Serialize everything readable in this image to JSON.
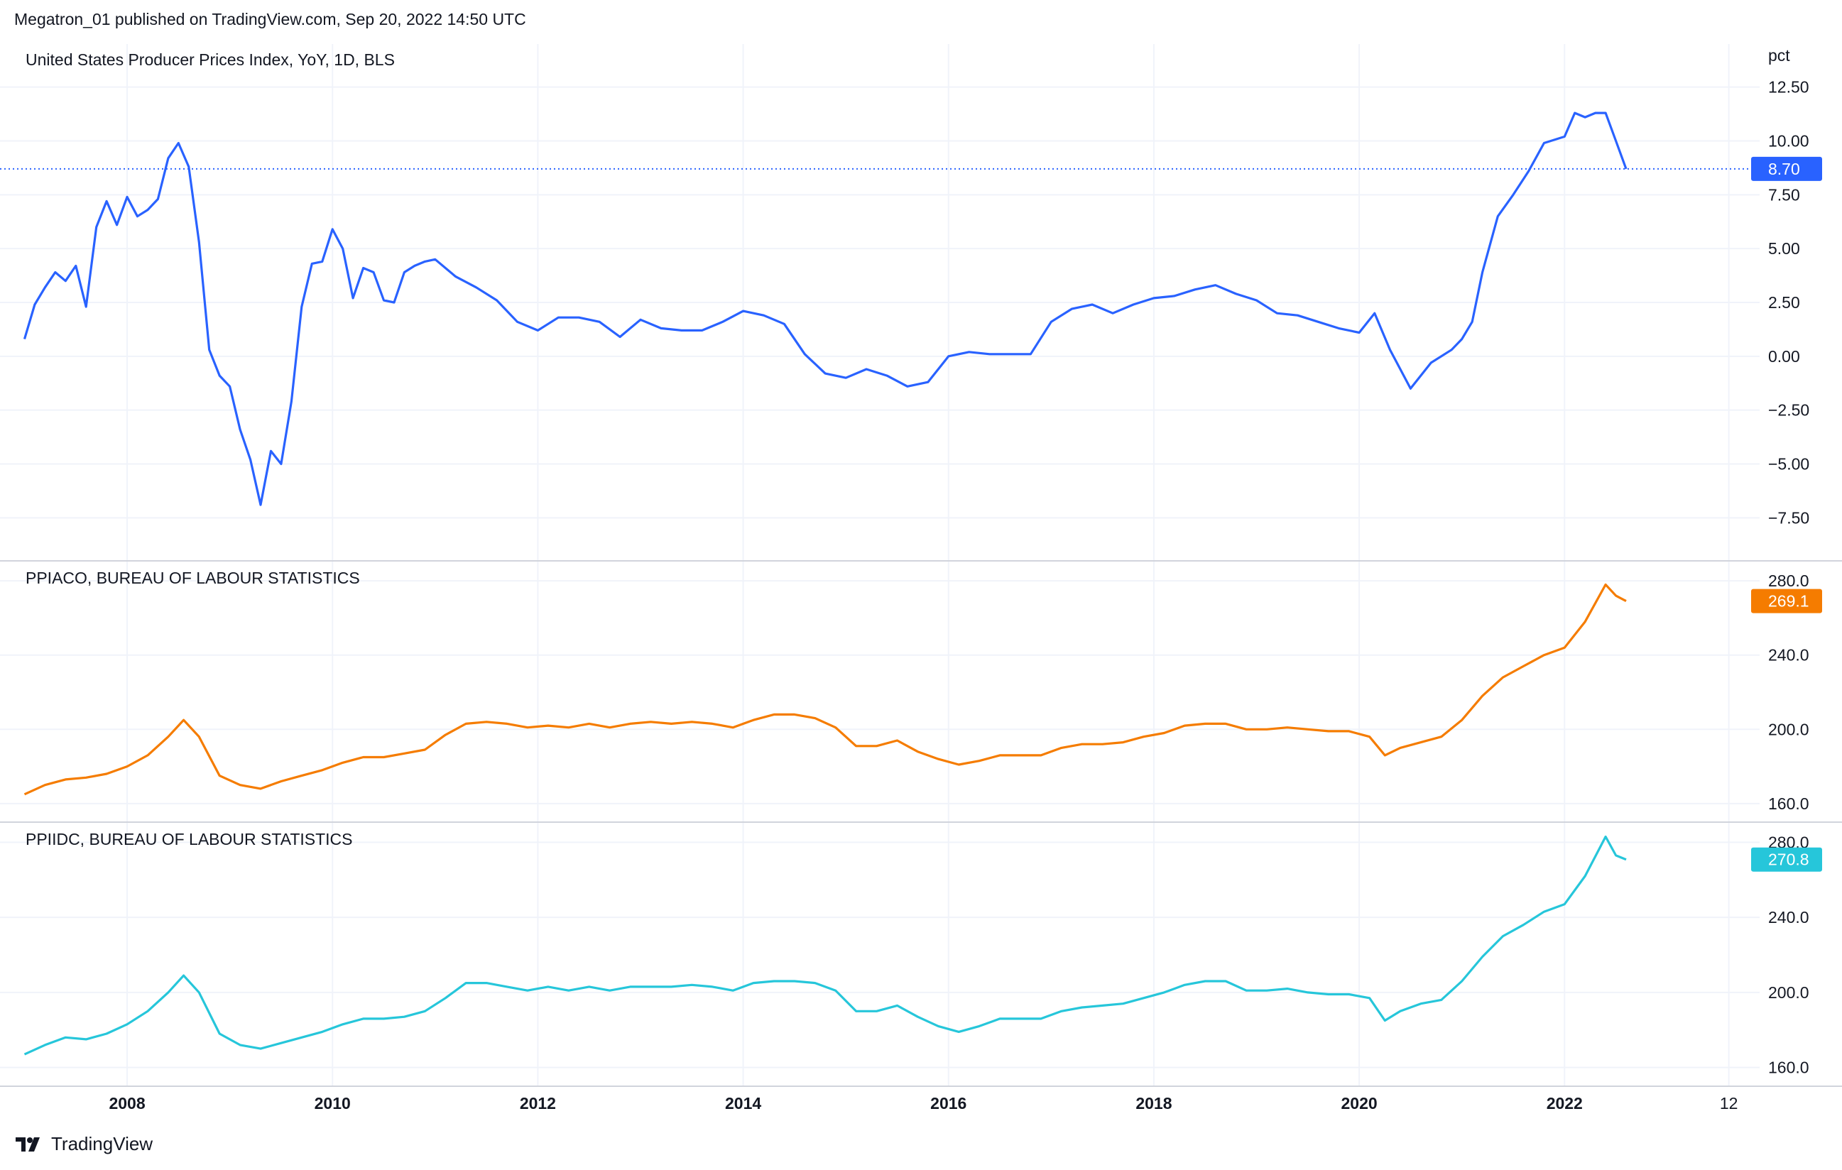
{
  "header": {
    "publish_text": "Megatron_01 published on TradingView.com, Sep 20, 2022 14:50 UTC"
  },
  "footer": {
    "brand": "TradingView",
    "logo_icon": "tradingview-logo-icon"
  },
  "x_axis": {
    "labels": [
      "2008",
      "2010",
      "2012",
      "2014",
      "2016",
      "2018",
      "2020",
      "2022",
      "12"
    ],
    "range": [
      2006.9,
      2023.9
    ]
  },
  "chart_data": [
    {
      "type": "line",
      "title": "United States Producer Prices Index, YoY, 1D, BLS",
      "ylabel": "pct",
      "ylim": [
        -9.5,
        14.5
      ],
      "yticks": [
        "12.50",
        "10.00",
        "7.50",
        "5.00",
        "2.50",
        "0.00",
        "−2.50",
        "−5.00",
        "−7.50"
      ],
      "yticks_values": [
        12.5,
        10,
        7.5,
        5,
        2.5,
        0,
        -2.5,
        -5,
        -7.5
      ],
      "last_value_label": "8.70",
      "last_value": 8.7,
      "color": "#2962ff",
      "x": [
        2007.0,
        2007.1,
        2007.2,
        2007.3,
        2007.4,
        2007.5,
        2007.6,
        2007.7,
        2007.8,
        2007.9,
        2008.0,
        2008.1,
        2008.2,
        2008.3,
        2008.4,
        2008.5,
        2008.6,
        2008.7,
        2008.8,
        2008.9,
        2009.0,
        2009.1,
        2009.2,
        2009.3,
        2009.4,
        2009.5,
        2009.6,
        2009.7,
        2009.8,
        2009.9,
        2010.0,
        2010.1,
        2010.2,
        2010.3,
        2010.4,
        2010.5,
        2010.6,
        2010.7,
        2010.8,
        2010.9,
        2011.0,
        2011.2,
        2011.4,
        2011.6,
        2011.8,
        2012.0,
        2012.2,
        2012.4,
        2012.6,
        2012.8,
        2013.0,
        2013.2,
        2013.4,
        2013.6,
        2013.8,
        2014.0,
        2014.2,
        2014.4,
        2014.6,
        2014.8,
        2015.0,
        2015.2,
        2015.4,
        2015.6,
        2015.8,
        2016.0,
        2016.2,
        2016.4,
        2016.6,
        2016.8,
        2017.0,
        2017.2,
        2017.4,
        2017.6,
        2017.8,
        2018.0,
        2018.2,
        2018.4,
        2018.6,
        2018.8,
        2019.0,
        2019.2,
        2019.4,
        2019.6,
        2019.8,
        2020.0,
        2020.15,
        2020.3,
        2020.5,
        2020.7,
        2020.9,
        2021.0,
        2021.1,
        2021.2,
        2021.35,
        2021.5,
        2021.65,
        2021.8,
        2022.0,
        2022.1,
        2022.2,
        2022.3,
        2022.4,
        2022.5,
        2022.6
      ],
      "y": [
        0.8,
        2.4,
        3.2,
        3.9,
        3.5,
        4.2,
        2.3,
        6.0,
        7.2,
        6.1,
        7.4,
        6.5,
        6.8,
        7.3,
        9.2,
        9.9,
        8.8,
        5.3,
        0.3,
        -0.9,
        -1.4,
        -3.4,
        -4.8,
        -6.9,
        -4.4,
        -5.0,
        -2.1,
        2.3,
        4.3,
        4.4,
        5.9,
        5.0,
        2.7,
        4.1,
        3.9,
        2.6,
        2.5,
        3.9,
        4.2,
        4.4,
        4.5,
        3.7,
        3.2,
        2.6,
        1.6,
        1.2,
        1.8,
        1.8,
        1.6,
        0.9,
        1.7,
        1.3,
        1.2,
        1.2,
        1.6,
        2.1,
        1.9,
        1.5,
        0.1,
        -0.8,
        -1.0,
        -0.6,
        -0.9,
        -1.4,
        -1.2,
        0.0,
        0.2,
        0.1,
        0.1,
        0.1,
        1.6,
        2.2,
        2.4,
        2.0,
        2.4,
        2.7,
        2.8,
        3.1,
        3.3,
        2.9,
        2.6,
        2.0,
        1.9,
        1.6,
        1.3,
        1.1,
        2.0,
        0.3,
        -1.5,
        -0.3,
        0.3,
        0.8,
        1.6,
        3.9,
        6.5,
        7.5,
        8.6,
        9.9,
        10.2,
        11.3,
        11.1,
        11.3,
        11.3,
        10.0,
        8.7
      ]
    },
    {
      "type": "line",
      "title": "PPIACO, BUREAU OF LABOUR STATISTICS",
      "ylim": [
        150,
        290
      ],
      "yticks": [
        "280.0",
        "240.0",
        "200.0",
        "160.0"
      ],
      "yticks_values": [
        280,
        240,
        200,
        160
      ],
      "last_value_label": "269.1",
      "last_value": 269.1,
      "color": "#f57c00",
      "x": [
        2007.0,
        2007.2,
        2007.4,
        2007.6,
        2007.8,
        2008.0,
        2008.2,
        2008.4,
        2008.55,
        2008.7,
        2008.9,
        2009.1,
        2009.3,
        2009.5,
        2009.7,
        2009.9,
        2010.1,
        2010.3,
        2010.5,
        2010.7,
        2010.9,
        2011.1,
        2011.3,
        2011.5,
        2011.7,
        2011.9,
        2012.1,
        2012.3,
        2012.5,
        2012.7,
        2012.9,
        2013.1,
        2013.3,
        2013.5,
        2013.7,
        2013.9,
        2014.1,
        2014.3,
        2014.5,
        2014.7,
        2014.9,
        2015.1,
        2015.3,
        2015.5,
        2015.7,
        2015.9,
        2016.1,
        2016.3,
        2016.5,
        2016.7,
        2016.9,
        2017.1,
        2017.3,
        2017.5,
        2017.7,
        2017.9,
        2018.1,
        2018.3,
        2018.5,
        2018.7,
        2018.9,
        2019.1,
        2019.3,
        2019.5,
        2019.7,
        2019.9,
        2020.1,
        2020.25,
        2020.4,
        2020.6,
        2020.8,
        2021.0,
        2021.2,
        2021.4,
        2021.6,
        2021.8,
        2022.0,
        2022.2,
        2022.4,
        2022.5,
        2022.6
      ],
      "y": [
        165,
        170,
        173,
        174,
        176,
        180,
        186,
        196,
        205,
        196,
        175,
        170,
        168,
        172,
        175,
        178,
        182,
        185,
        185,
        187,
        189,
        197,
        203,
        204,
        203,
        201,
        202,
        201,
        203,
        201,
        203,
        204,
        203,
        204,
        203,
        201,
        205,
        208,
        208,
        206,
        201,
        191,
        191,
        194,
        188,
        184,
        181,
        183,
        186,
        186,
        186,
        190,
        192,
        192,
        193,
        196,
        198,
        202,
        203,
        203,
        200,
        200,
        201,
        200,
        199,
        199,
        196,
        186,
        190,
        193,
        196,
        205,
        218,
        228,
        234,
        240,
        244,
        258,
        278,
        272,
        269.1
      ]
    },
    {
      "type": "line",
      "title": "PPIIDC, BUREAU OF LABOUR STATISTICS",
      "ylim": [
        150,
        290
      ],
      "yticks": [
        "280.0",
        "240.0",
        "200.0",
        "160.0"
      ],
      "yticks_values": [
        280,
        240,
        200,
        160
      ],
      "last_value_label": "270.8",
      "last_value": 270.8,
      "color": "#26c6da",
      "x": [
        2007.0,
        2007.2,
        2007.4,
        2007.6,
        2007.8,
        2008.0,
        2008.2,
        2008.4,
        2008.55,
        2008.7,
        2008.9,
        2009.1,
        2009.3,
        2009.5,
        2009.7,
        2009.9,
        2010.1,
        2010.3,
        2010.5,
        2010.7,
        2010.9,
        2011.1,
        2011.3,
        2011.5,
        2011.7,
        2011.9,
        2012.1,
        2012.3,
        2012.5,
        2012.7,
        2012.9,
        2013.1,
        2013.3,
        2013.5,
        2013.7,
        2013.9,
        2014.1,
        2014.3,
        2014.5,
        2014.7,
        2014.9,
        2015.1,
        2015.3,
        2015.5,
        2015.7,
        2015.9,
        2016.1,
        2016.3,
        2016.5,
        2016.7,
        2016.9,
        2017.1,
        2017.3,
        2017.5,
        2017.7,
        2017.9,
        2018.1,
        2018.3,
        2018.5,
        2018.7,
        2018.9,
        2019.1,
        2019.3,
        2019.5,
        2019.7,
        2019.9,
        2020.1,
        2020.25,
        2020.4,
        2020.6,
        2020.8,
        2021.0,
        2021.2,
        2021.4,
        2021.6,
        2021.8,
        2022.0,
        2022.2,
        2022.4,
        2022.5,
        2022.6
      ],
      "y": [
        167,
        172,
        176,
        175,
        178,
        183,
        190,
        200,
        209,
        200,
        178,
        172,
        170,
        173,
        176,
        179,
        183,
        186,
        186,
        187,
        190,
        197,
        205,
        205,
        203,
        201,
        203,
        201,
        203,
        201,
        203,
        203,
        203,
        204,
        203,
        201,
        205,
        206,
        206,
        205,
        201,
        190,
        190,
        193,
        187,
        182,
        179,
        182,
        186,
        186,
        186,
        190,
        192,
        193,
        194,
        197,
        200,
        204,
        206,
        206,
        201,
        201,
        202,
        200,
        199,
        199,
        197,
        185,
        190,
        194,
        196,
        206,
        219,
        230,
        236,
        243,
        247,
        262,
        283,
        273,
        270.8
      ]
    }
  ]
}
